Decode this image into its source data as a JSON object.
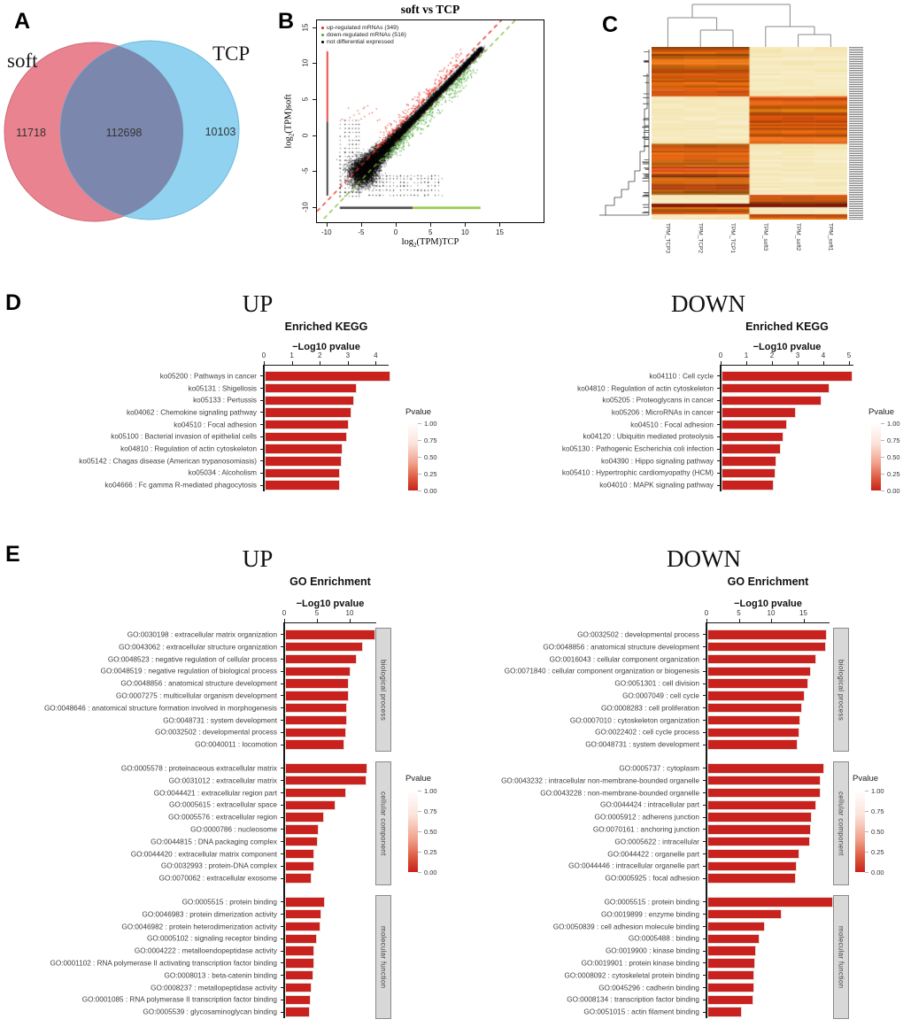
{
  "panels": {
    "a": "A",
    "b": "B",
    "c": "C",
    "d": "D",
    "e": "E"
  },
  "colorbar": {
    "title": "Pvalue",
    "ticks": [
      "1.00",
      "0.75",
      "0.50",
      "0.25",
      "0.00"
    ],
    "top_color": "#ffffff",
    "bottom_color": "#c9211d"
  },
  "chart_data": [
    {
      "id": "venn",
      "type": "venn",
      "left_label": "soft",
      "right_label": "TCP",
      "left_only": 11718,
      "overlap": 112698,
      "right_only": 10103,
      "left_color": "#e8838f",
      "right_color": "#90d2ef",
      "overlap_color": "#7c87ad"
    },
    {
      "id": "scatter",
      "type": "scatter",
      "title": "soft vs TCP",
      "xlabel": {
        "prefix": "log",
        "sub": "2",
        "suffix": "(TPM)TCP"
      },
      "ylabel": {
        "prefix": "log",
        "sub": "2",
        "suffix": "(TPM)soft"
      },
      "xticks": [
        -10,
        -5,
        0,
        5,
        10,
        15
      ],
      "yticks": [
        -10,
        -5,
        0,
        5,
        10,
        15
      ],
      "xlim": [
        -11.5,
        21.2
      ],
      "ylim": [
        -12,
        16.1
      ],
      "legend": [
        {
          "label": "up-regulated mRNAs (349)",
          "color": "#e02418"
        },
        {
          "label": "down-regulated mRNAs (516)",
          "color": "#44a832"
        },
        {
          "label": "not differential expressed",
          "color": "#000000"
        }
      ],
      "guide_lines": [
        {
          "eq": "y = x + 1",
          "color": "#e8251d"
        },
        {
          "eq": "y = x - 1",
          "color": "#7CB82F"
        }
      ],
      "marginal_lines": {
        "x_axis_value": -10,
        "y_axis_value": -10
      }
    },
    {
      "id": "heatmap",
      "type": "heatmap",
      "columns": [
        "TPM_TCP3",
        "TPM_TCP2",
        "TPM_TCP1",
        "TPM_soft3",
        "TPM_soft2",
        "TPM_soft1"
      ],
      "palette": {
        "low": "#fbf0c2",
        "high": "#dc6410",
        "deep": "#8f1a00"
      },
      "blocks": [
        {
          "rows": 28,
          "left": "high",
          "right": "low"
        },
        {
          "rows": 27,
          "left": "low",
          "right": "high"
        },
        {
          "rows": 29,
          "left": "high",
          "right": "low"
        },
        {
          "rows": 5,
          "left": "low",
          "right": "high"
        },
        {
          "rows": 2,
          "left": "deep",
          "right": "deep"
        },
        {
          "rows": 4,
          "left": "high",
          "right": "low"
        },
        {
          "rows": 3,
          "left": "low",
          "right": "high"
        }
      ]
    },
    {
      "id": "kegg_up",
      "type": "bar",
      "panel": "D",
      "title": "UP",
      "subtitle": "Enriched KEGG",
      "xlabel": "−Log10 pvalue",
      "xticks": [
        0,
        1,
        2,
        3,
        4
      ],
      "bar_color": "#c9211d",
      "items": [
        {
          "label": "ko05200 : Pathways in cancer",
          "value": 4.5
        },
        {
          "label": "ko05131 : Shigellosis",
          "value": 3.3
        },
        {
          "label": "ko05133 : Pertussis",
          "value": 3.2
        },
        {
          "label": "ko04062 : Chemokine signaling pathway",
          "value": 3.1
        },
        {
          "label": "ko04510 : Focal adhesion",
          "value": 3.0
        },
        {
          "label": "ko05100 : Bacterial invasion of epithelial cells",
          "value": 2.95
        },
        {
          "label": "ko04810 : Regulation of actin cytoskeleton",
          "value": 2.8
        },
        {
          "label": "ko05142 : Chagas disease (American trypanosomiasis)",
          "value": 2.75
        },
        {
          "label": "ko05034 : Alcoholism",
          "value": 2.7
        },
        {
          "label": "ko04666 : Fc gamma R-mediated phagocytosis",
          "value": 2.68
        }
      ]
    },
    {
      "id": "kegg_down",
      "type": "bar",
      "panel": "D",
      "title": "DOWN",
      "subtitle": "Enriched KEGG",
      "xlabel": "−Log10 pvalue",
      "xticks": [
        0,
        1,
        2,
        3,
        4,
        5
      ],
      "bar_color": "#c9211d",
      "items": [
        {
          "label": "ko04110 : Cell cycle",
          "value": 5.1
        },
        {
          "label": "ko04810 : Regulation of actin cytoskeleton",
          "value": 4.2
        },
        {
          "label": "ko05205 : Proteoglycans in cancer",
          "value": 3.9
        },
        {
          "label": "ko05206 : MicroRNAs in cancer",
          "value": 2.9
        },
        {
          "label": "ko04510 : Focal adhesion",
          "value": 2.55
        },
        {
          "label": "ko04120 : Ubiquitin mediated proteolysis",
          "value": 2.4
        },
        {
          "label": "ko05130 : Pathogenic Escherichia coli infection",
          "value": 2.3
        },
        {
          "label": "ko04390 : Hippo signaling pathway",
          "value": 2.15
        },
        {
          "label": "ko05410 : Hypertrophic cardiomyopathy (HCM)",
          "value": 2.1
        },
        {
          "label": "ko04010 : MAPK signaling pathway",
          "value": 2.05
        }
      ]
    },
    {
      "id": "go_up",
      "type": "bar",
      "panel": "E",
      "title": "UP",
      "subtitle": "GO Enrichment",
      "xlabel": "−Log10 pvalue",
      "xticks": [
        0,
        5,
        10
      ],
      "bar_color": "#c9211d",
      "groups": [
        {
          "name": "biological process",
          "items": [
            {
              "label": "GO:0030198 : extracellular matrix organization",
              "value": 13.8
            },
            {
              "label": "GO:0043062 : extracellular structure organization",
              "value": 11.9
            },
            {
              "label": "GO:0048523 : negative regulation of cellular process",
              "value": 10.9
            },
            {
              "label": "GO:0048519 : negative regulation of biological process",
              "value": 10.0
            },
            {
              "label": "GO:0048856 : anatomical structure development",
              "value": 9.7
            },
            {
              "label": "GO:0007275 : multicellular organism development",
              "value": 9.7
            },
            {
              "label": "GO:0048646 : anatomical structure formation involved in morphogenesis",
              "value": 9.4
            },
            {
              "label": "GO:0048731 : system development",
              "value": 9.4
            },
            {
              "label": "GO:0032502 : developmental process",
              "value": 9.3
            },
            {
              "label": "GO:0040011 : locomotion",
              "value": 9.0
            }
          ]
        },
        {
          "name": "cellular component",
          "items": [
            {
              "label": "GO:0005578 : proteinaceous extracellular matrix",
              "value": 12.6
            },
            {
              "label": "GO:0031012 : extracellular matrix",
              "value": 12.4
            },
            {
              "label": "GO:0044421 : extracellular region part",
              "value": 9.3
            },
            {
              "label": "GO:0005615 : extracellular space",
              "value": 7.7
            },
            {
              "label": "GO:0005576 : extracellular region",
              "value": 5.9
            },
            {
              "label": "GO:0000786 : nucleosome",
              "value": 5.2
            },
            {
              "label": "GO:0044815 : DNA packaging complex",
              "value": 5.0
            },
            {
              "label": "GO:0044420 : extracellular matrix component",
              "value": 4.5
            },
            {
              "label": "GO:0032993 : protein-DNA complex",
              "value": 4.4
            },
            {
              "label": "GO:0070062 : extracellular exosome",
              "value": 4.0
            }
          ]
        },
        {
          "name": "molecular function",
          "items": [
            {
              "label": "GO:0005515 : protein binding",
              "value": 6.1
            },
            {
              "label": "GO:0046983 : protein dimerization activity",
              "value": 5.6
            },
            {
              "label": "GO:0046982 : protein heterodimerization activity",
              "value": 5.4
            },
            {
              "label": "GO:0005102 : signaling receptor binding",
              "value": 4.9
            },
            {
              "label": "GO:0004222 : metalloendopeptidase activity",
              "value": 4.5
            },
            {
              "label": "GO:0001102 : RNA polymerase II activating transcription factor binding",
              "value": 4.5
            },
            {
              "label": "GO:0008013 : beta-catenin binding",
              "value": 4.3
            },
            {
              "label": "GO:0008237 : metallopeptidase activity",
              "value": 4.0
            },
            {
              "label": "GO:0001085 : RNA polymerase II transcription factor binding",
              "value": 3.9
            },
            {
              "label": "GO:0005539 : glycosaminoglycan binding",
              "value": 3.8
            }
          ]
        }
      ]
    },
    {
      "id": "go_down",
      "type": "bar",
      "panel": "E",
      "title": "DOWN",
      "subtitle": "GO Enrichment",
      "xlabel": "−Log10 pvalue",
      "xticks": [
        0,
        5,
        10,
        15
      ],
      "bar_color": "#c9211d",
      "groups": [
        {
          "name": "biological process",
          "items": [
            {
              "label": "GO:0032502 : developmental process",
              "value": 18.5
            },
            {
              "label": "GO:0048856 : anatomical structure development",
              "value": 18.3
            },
            {
              "label": "GO:0016043 : cellular component organization",
              "value": 16.8
            },
            {
              "label": "GO:0071840 : cellular component organization or biogenesis",
              "value": 16.0
            },
            {
              "label": "GO:0051301 : cell division",
              "value": 15.6
            },
            {
              "label": "GO:0007049 : cell cycle",
              "value": 15.1
            },
            {
              "label": "GO:0008283 : cell proliferation",
              "value": 14.6
            },
            {
              "label": "GO:0007010 : cytoskeleton organization",
              "value": 14.4
            },
            {
              "label": "GO:0022402 : cell cycle process",
              "value": 14.2
            },
            {
              "label": "GO:0048731 : system development",
              "value": 14.0
            }
          ]
        },
        {
          "name": "cellular component",
          "items": [
            {
              "label": "GO:0005737 : cytoplasm",
              "value": 18.1
            },
            {
              "label": "GO:0043232 : intracellular non-membrane-bounded organelle",
              "value": 17.5
            },
            {
              "label": "GO:0043228 : non-membrane-bounded organelle",
              "value": 17.5
            },
            {
              "label": "GO:0044424 : intracellular part",
              "value": 16.8
            },
            {
              "label": "GO:0005912 : adherens junction",
              "value": 16.2
            },
            {
              "label": "GO:0070161 : anchoring junction",
              "value": 16.0
            },
            {
              "label": "GO:0005622 : intracellular",
              "value": 15.9
            },
            {
              "label": "GO:0044422 : organelle part",
              "value": 14.2
            },
            {
              "label": "GO:0044446 : intracellular organelle part",
              "value": 13.8
            },
            {
              "label": "GO:0005925 : focal adhesion",
              "value": 13.7
            }
          ]
        },
        {
          "name": "molecular function",
          "items": [
            {
              "label": "GO:0005515 : protein binding",
              "value": 19.5
            },
            {
              "label": "GO:0019899 : enzyme binding",
              "value": 11.5
            },
            {
              "label": "GO:0050839 : cell adhesion molecule binding",
              "value": 8.9
            },
            {
              "label": "GO:0005488 : binding",
              "value": 8.1
            },
            {
              "label": "GO:0019900 : kinase binding",
              "value": 7.6
            },
            {
              "label": "GO:0019901 : protein kinase binding",
              "value": 7.4
            },
            {
              "label": "GO:0008092 : cytoskeletal protein binding",
              "value": 7.3
            },
            {
              "label": "GO:0045296 : cadherin binding",
              "value": 7.2
            },
            {
              "label": "GO:0008134 : transcription factor binding",
              "value": 7.1
            },
            {
              "label": "GO:0051015 : actin filament binding",
              "value": 5.3
            }
          ]
        }
      ]
    }
  ]
}
